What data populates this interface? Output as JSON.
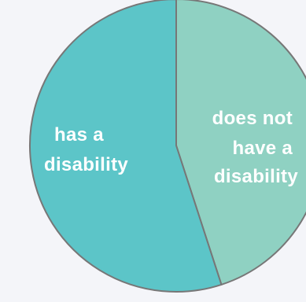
{
  "chart_data": {
    "type": "pie",
    "title": "",
    "slices": [
      {
        "label": "does not have a disability",
        "label_lines": [
          "does not",
          "have a",
          "disability"
        ],
        "value": 45,
        "color": "#8fd1c2"
      },
      {
        "label": "has a disability",
        "label_lines": [
          "has a",
          "disability"
        ],
        "value": 55,
        "color": "#5cc5c8"
      }
    ],
    "start_angle": "12 o'clock",
    "direction": "clockwise",
    "labels_on_slices": true,
    "legend": "none",
    "stroke_color": "#777777"
  }
}
